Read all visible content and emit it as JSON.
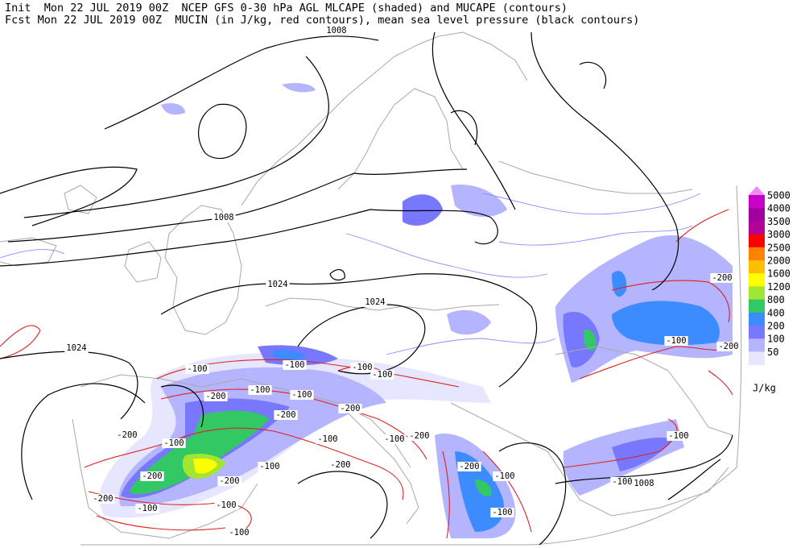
{
  "header": {
    "line1": "Init  Mon 22 JUL 2019 00Z  NCEP GFS 0-30 hPa AGL MLCAPE (shaded) and MUCAPE (contours)",
    "line2": "Fcst Mon 22 JUL 2019 00Z  MUCIN (in J/kg, red contours), mean sea level pressure (black contours)"
  },
  "legend": {
    "levels": [
      {
        "label": "5000",
        "color": "#c800c8"
      },
      {
        "label": "4000",
        "color": "#a000a0"
      },
      {
        "label": "3500",
        "color": "#b40096"
      },
      {
        "label": "3000",
        "color": "#ff0000"
      },
      {
        "label": "2500",
        "color": "#ff8200"
      },
      {
        "label": "2000",
        "color": "#ffbe00"
      },
      {
        "label": "1600",
        "color": "#ffff00"
      },
      {
        "label": "1200",
        "color": "#a0e632"
      },
      {
        "label": "800",
        "color": "#32c864"
      },
      {
        "label": "400",
        "color": "#3c8cff"
      },
      {
        "label": "200",
        "color": "#7878ff"
      },
      {
        "label": "100",
        "color": "#b4b4ff"
      },
      {
        "label": "50",
        "color": "#e6e6ff"
      }
    ],
    "top_color": "#f08cf0",
    "units": "J/kg"
  },
  "isobar_labels": [
    "1008",
    "1008",
    "1024",
    "1024",
    "1024",
    "1008"
  ],
  "cin_labels": [
    "-100",
    "-100",
    "-100",
    "-100",
    "-200",
    "-100",
    "-100",
    "-200",
    "-200",
    "-200",
    "-100",
    "-200",
    "-100",
    "-100",
    "-200",
    "-100",
    "-200",
    "-200",
    "-100",
    "-200",
    "-100",
    "-100",
    "-200",
    "-100",
    "-100",
    "-100",
    "-100",
    "-200",
    "-200",
    "-100"
  ]
}
